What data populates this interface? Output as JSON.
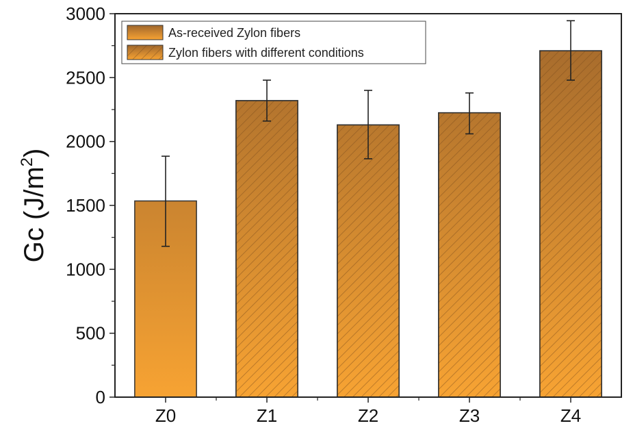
{
  "chart_data": {
    "type": "bar",
    "title": "",
    "xlabel": "",
    "ylabel": "Gc (J/m²)",
    "ylabel_main": "Gc (J/m",
    "ylabel_sup": "2",
    "ylabel_close": ")",
    "ylim": [
      0,
      3000
    ],
    "yticks": [
      0,
      500,
      1000,
      1500,
      2000,
      2500,
      3000
    ],
    "categories": [
      "Z0",
      "Z1",
      "Z2",
      "Z3",
      "Z4"
    ],
    "values": [
      1535,
      2320,
      2130,
      2225,
      2710
    ],
    "errors_low": [
      1180,
      2160,
      1865,
      2060,
      2480
    ],
    "errors_high": [
      1885,
      2480,
      2400,
      2380,
      2945
    ],
    "bar_styles": [
      "solid",
      "hatched",
      "hatched",
      "hatched",
      "hatched"
    ],
    "legend": [
      {
        "label": "As-received Zylon fibers",
        "style": "solid"
      },
      {
        "label": "Zylon fibers with different conditions",
        "style": "hatched"
      }
    ],
    "legend_position": "top-left",
    "grid": false,
    "colors": {
      "bar_top": "#a0672c",
      "bar_bottom": "#f7a333",
      "hatch": "#7a4a1c",
      "axis": "#222222"
    }
  }
}
